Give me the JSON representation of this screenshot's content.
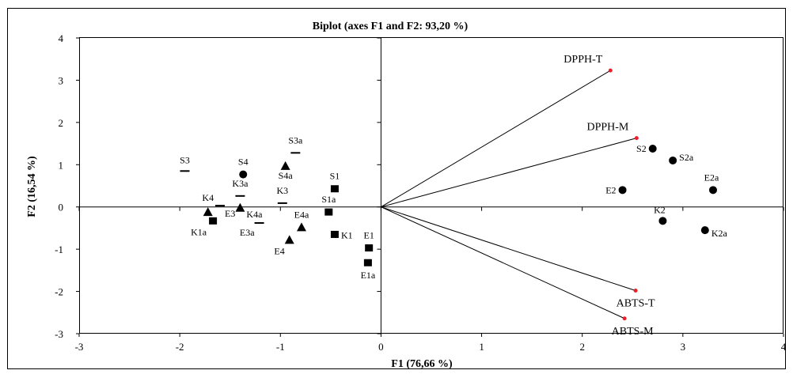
{
  "chart_data": {
    "type": "scatter",
    "title": "Biplot (axes F1 and F2: 93,20 %)",
    "xlabel": "F1 (76,66 %)",
    "ylabel": "F2 (16,54 %)",
    "xlim": [
      -3,
      4
    ],
    "ylim": [
      -3,
      4
    ],
    "x_ticks": [
      "-3",
      "-2",
      "-1",
      "0",
      "1",
      "2",
      "3",
      "4"
    ],
    "y_ticks": [
      "-3",
      "-2",
      "-1",
      "0",
      "1",
      "2",
      "3",
      "4"
    ],
    "grid": false,
    "legend": "none",
    "colors": {
      "points": "#000000",
      "vectors": "#000000",
      "vector_tips": "#e8202a"
    },
    "variables": [
      {
        "label": "DPPH-T",
        "x": 2.28,
        "y": 3.23
      },
      {
        "label": "DPPH-M",
        "x": 2.54,
        "y": 1.63
      },
      {
        "label": "ABTS-T",
        "x": 2.53,
        "y": -1.98
      },
      {
        "label": "ABTS-M",
        "x": 2.42,
        "y": -2.64
      }
    ],
    "observations": [
      {
        "label": "S2",
        "x": 2.7,
        "y": 1.38,
        "marker": "circle"
      },
      {
        "label": "S2a",
        "x": 2.9,
        "y": 1.1,
        "marker": "circle"
      },
      {
        "label": "E2",
        "x": 2.4,
        "y": 0.4,
        "marker": "circle"
      },
      {
        "label": "E2a",
        "x": 3.3,
        "y": 0.4,
        "marker": "circle"
      },
      {
        "label": "K2",
        "x": 2.8,
        "y": -0.33,
        "marker": "circle"
      },
      {
        "label": "K2a",
        "x": 3.22,
        "y": -0.55,
        "marker": "circle"
      },
      {
        "label": "S4",
        "x": -1.37,
        "y": 0.77,
        "marker": "circle"
      },
      {
        "label": "S1",
        "x": -0.46,
        "y": 0.43,
        "marker": "square"
      },
      {
        "label": "S1a",
        "x": -0.52,
        "y": -0.12,
        "marker": "square"
      },
      {
        "label": "K1",
        "x": -0.46,
        "y": -0.65,
        "marker": "square"
      },
      {
        "label": "E1",
        "x": -0.12,
        "y": -0.97,
        "marker": "square"
      },
      {
        "label": "E1a",
        "x": -0.13,
        "y": -1.32,
        "marker": "square"
      },
      {
        "label": "K1a",
        "x": -1.67,
        "y": -0.33,
        "marker": "square"
      },
      {
        "label": "S4a",
        "x": -0.95,
        "y": 0.97,
        "marker": "triangle"
      },
      {
        "label": "E4a",
        "x": -0.79,
        "y": -0.48,
        "marker": "triangle"
      },
      {
        "label": "E4",
        "x": -0.91,
        "y": -0.78,
        "marker": "triangle"
      },
      {
        "label": "K4",
        "x": -1.72,
        "y": -0.12,
        "marker": "triangle"
      },
      {
        "label": "K4a",
        "x": -1.4,
        "y": -0.02,
        "marker": "triangle"
      },
      {
        "label": "S3",
        "x": -1.95,
        "y": 0.85,
        "marker": "dash"
      },
      {
        "label": "S3a",
        "x": -0.85,
        "y": 1.28,
        "marker": "dash"
      },
      {
        "label": "K3a",
        "x": -1.4,
        "y": 0.26,
        "marker": "dash"
      },
      {
        "label": "K3",
        "x": -0.98,
        "y": 0.09,
        "marker": "dash"
      },
      {
        "label": "E3",
        "x": -1.6,
        "y": 0.03,
        "marker": "dash"
      },
      {
        "label": "E3a",
        "x": -1.21,
        "y": -0.38,
        "marker": "dash"
      }
    ]
  }
}
